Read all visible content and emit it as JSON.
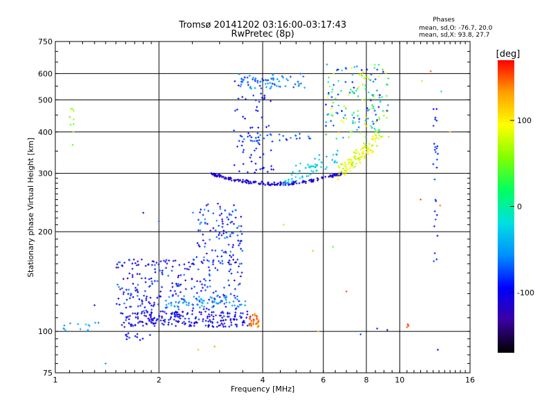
{
  "chart_data": {
    "type": "scatter",
    "title": "Tromsø 20141202 03:16:00-03:17:43",
    "subtitle": "RwPretec (8p)",
    "phase_heading": "Phases",
    "phase_stats": [
      "mean, sd,O: -76.7, 20.0",
      "mean, sd,X:  93.8, 27.7"
    ],
    "xlabel": "Frequency [MHz]",
    "ylabel": "Stationary phase Virtual Height [km]",
    "x_scale": "log",
    "y_scale": "log",
    "xlim": [
      1,
      16
    ],
    "ylim": [
      75,
      750
    ],
    "x_ticks": [
      1,
      2,
      4,
      6,
      8,
      10,
      16
    ],
    "y_ticks": [
      75,
      100,
      200,
      300,
      400,
      500,
      600,
      750
    ],
    "x_grid": [
      2,
      4,
      6,
      8,
      10
    ],
    "y_grid": [
      100,
      200,
      300,
      400,
      500,
      600
    ],
    "grid": true,
    "colorbar": {
      "unit": "[deg]",
      "range": [
        -170,
        170
      ],
      "ticks": [
        100,
        0,
        -100
      ],
      "stops": [
        "#000000",
        "#3a00a0",
        "#0000ff",
        "#0090ff",
        "#00e0e0",
        "#00ff60",
        "#80ff00",
        "#ffff00",
        "#ffa000",
        "#ff0000"
      ]
    },
    "series": [
      {
        "clusters": [
          {
            "x": [
              1.55,
              3.7
            ],
            "y": [
              103,
              115
            ],
            "n": 230,
            "phase": [
              -130,
              -80
            ],
            "shape": "rect"
          },
          {
            "x": [
              1.5,
              3.5
            ],
            "y": [
              115,
              165
            ],
            "n": 260,
            "phase": [
              -130,
              -60
            ],
            "shape": "rect"
          },
          {
            "x": [
              2.5,
              3.5
            ],
            "y": [
              160,
              245
            ],
            "n": 110,
            "phase": [
              -120,
              -50
            ],
            "shape": "rect"
          },
          {
            "x": [
              2.1,
              3.6
            ],
            "y": [
              118,
              128
            ],
            "n": 60,
            "phase": [
              -60,
              -40
            ],
            "shape": "rect"
          },
          {
            "x": [
              3.65,
              3.9
            ],
            "y": [
              103,
              113
            ],
            "n": 35,
            "phase": [
              130,
              160
            ],
            "shape": "rect"
          },
          {
            "x": [
              1.0,
              1.35
            ],
            "y": [
              100,
              107
            ],
            "n": 14,
            "phase": [
              -60,
              -30
            ],
            "shape": "rect"
          },
          {
            "x": [
              1.6,
              1.9
            ],
            "y": [
              94,
              99
            ],
            "n": 12,
            "phase": [
              -110,
              -90
            ],
            "shape": "rect"
          },
          {
            "x": [
              2.8,
              6.8
            ],
            "y": [
              280,
              300
            ],
            "n": 190,
            "phase": [
              -125,
              -95
            ],
            "shape": "arc",
            "y_top": 300,
            "y_min": 279
          },
          {
            "x": [
              3.3,
              4.3
            ],
            "y": [
              300,
              600
            ],
            "n": 80,
            "phase": [
              -110,
              -80
            ],
            "shape": "rect"
          },
          {
            "x": [
              3.4,
              5.3
            ],
            "y": [
              540,
              600
            ],
            "n": 60,
            "phase": [
              -80,
              -40
            ],
            "shape": "rect"
          },
          {
            "x": [
              3.4,
              5.5
            ],
            "y": [
              375,
              395
            ],
            "n": 30,
            "phase": [
              -90,
              -60
            ],
            "shape": "rect"
          },
          {
            "x": [
              4.6,
              6.6
            ],
            "y": [
              288,
              340
            ],
            "n": 60,
            "phase": [
              -50,
              -10
            ],
            "shape": "band"
          },
          {
            "x": [
              6.6,
              8.6
            ],
            "y": [
              300,
              380
            ],
            "n": 110,
            "phase": [
              60,
              110
            ],
            "shape": "band"
          },
          {
            "x": [
              6.1,
              9.3
            ],
            "y": [
              380,
              640
            ],
            "n": 170,
            "phase": [
              -110,
              110
            ],
            "shape": "rect"
          },
          {
            "x": [
              1.1,
              1.15
            ],
            "y": [
              350,
              480
            ],
            "n": 9,
            "phase": [
              40,
              70
            ],
            "shape": "rect"
          },
          {
            "x": [
              12.5,
              12.9
            ],
            "y": [
              290,
              470
            ],
            "n": 16,
            "phase": [
              -100,
              -70
            ],
            "shape": "rect"
          },
          {
            "x": [
              12.5,
              12.9
            ],
            "y": [
              150,
              290
            ],
            "n": 10,
            "phase": [
              -110,
              -70
            ],
            "shape": "rect"
          }
        ],
        "points": [
          {
            "x": 10.5,
            "y": 103,
            "phase": 150
          },
          {
            "x": 10.6,
            "y": 104,
            "phase": 155
          },
          {
            "x": 10.55,
            "y": 105,
            "phase": 160
          },
          {
            "x": 12.3,
            "y": 610,
            "phase": 150
          },
          {
            "x": 11.6,
            "y": 570,
            "phase": 110
          },
          {
            "x": 13.2,
            "y": 530,
            "phase": -20
          },
          {
            "x": 11.5,
            "y": 250,
            "phase": 150
          },
          {
            "x": 13.1,
            "y": 240,
            "phase": 140
          },
          {
            "x": 12.8,
            "y": 165,
            "phase": -90
          },
          {
            "x": 14.0,
            "y": 400,
            "phase": 120
          },
          {
            "x": 12.9,
            "y": 88,
            "phase": -120
          },
          {
            "x": 7.7,
            "y": 98,
            "phase": -80
          },
          {
            "x": 7.0,
            "y": 132,
            "phase": 150
          },
          {
            "x": 5.6,
            "y": 175,
            "phase": 120
          },
          {
            "x": 6.4,
            "y": 180,
            "phase": 40
          },
          {
            "x": 1.8,
            "y": 228,
            "phase": -110
          },
          {
            "x": 2.0,
            "y": 215,
            "phase": -80
          },
          {
            "x": 1.4,
            "y": 80,
            "phase": -50
          },
          {
            "x": 2.6,
            "y": 88,
            "phase": 120
          },
          {
            "x": 2.9,
            "y": 90,
            "phase": 130
          },
          {
            "x": 4.6,
            "y": 210,
            "phase": 70
          },
          {
            "x": 5.8,
            "y": 100,
            "phase": 120
          },
          {
            "x": 1.3,
            "y": 120,
            "phase": -120
          },
          {
            "x": 9.2,
            "y": 101,
            "phase": -110
          },
          {
            "x": 8.6,
            "y": 102,
            "phase": -90
          }
        ]
      }
    ]
  }
}
